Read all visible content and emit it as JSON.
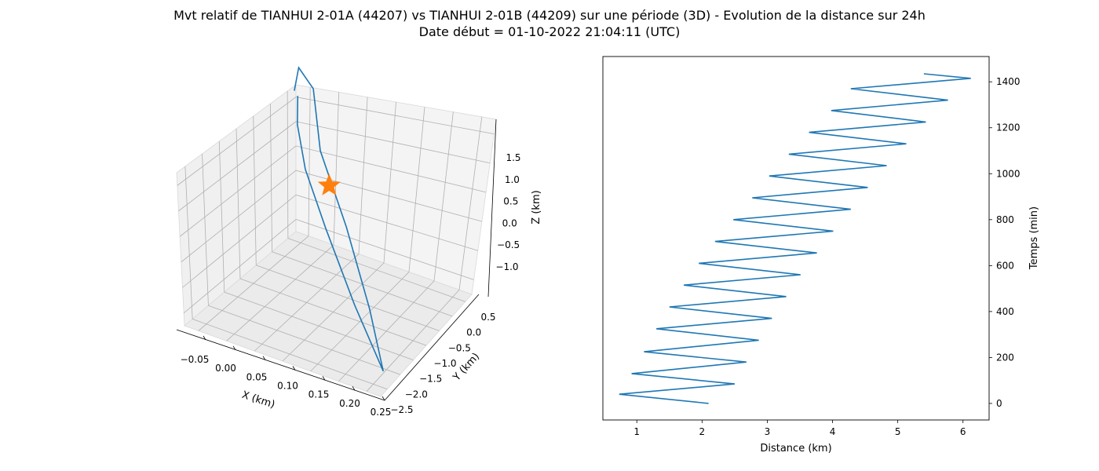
{
  "figure": {
    "title_line1": "Mvt relatif de TIANHUI 2-01A (44207) vs TIANHUI 2-01B (44209) sur une période (3D) - Evolution de la distance sur 24h",
    "title_line2": "Date début = 01-10-2022 21:04:11 (UTC)"
  },
  "chart_data": [
    {
      "type": "line",
      "projection": "3d",
      "xlabel": "X (km)",
      "ylabel": "Y (km)",
      "zlabel": "Z (km)",
      "xticks": [
        "−0.05",
        "0.00",
        "0.05",
        "0.10",
        "0.15",
        "0.20",
        "0.25"
      ],
      "yticks": [
        "0.5",
        "0.0",
        "−0.5",
        "−1.0",
        "−1.5",
        "−2.0",
        "−2.5"
      ],
      "zticks": [
        "1.5",
        "1.0",
        "0.5",
        "0.0",
        "−0.5",
        "−1.0"
      ],
      "xlim": [
        -0.09,
        0.29
      ],
      "ylim": [
        -2.7,
        0.9
      ],
      "zlim": [
        -1.45,
        1.95
      ],
      "grid": true,
      "series": [
        {
          "color": "#1f77b4",
          "marker": "none",
          "x": [
            0.27,
            0.2,
            0.1,
            0.0,
            -0.05,
            -0.07,
            -0.065
          ],
          "y": [
            -2.2,
            -1.4,
            -0.5,
            0.2,
            0.7,
            0.5,
            0.3
          ],
          "z": [
            -1.3,
            -0.8,
            -0.1,
            0.6,
            1.3,
            1.7,
            1.4
          ]
        },
        {
          "color": "#1f77b4",
          "marker": "none",
          "x": [
            0.27,
            0.18,
            0.08,
            0.0,
            -0.05,
            -0.07
          ],
          "y": [
            -2.2,
            -1.6,
            -0.9,
            -0.3,
            0.2,
            0.5
          ],
          "z": [
            -1.3,
            -0.7,
            0.0,
            0.5,
            0.9,
            1.2
          ]
        },
        {
          "color": "#ff7f0e",
          "marker": "star",
          "x": [
            0.03
          ],
          "y": [
            0.05
          ],
          "z": [
            0.15
          ]
        }
      ]
    },
    {
      "type": "line",
      "xlabel": "Distance (km)",
      "ylabel": "Temps (min)",
      "xlim": [
        0.48,
        6.4
      ],
      "ylim": [
        -72,
        1510
      ],
      "xticks": [
        1,
        2,
        3,
        4,
        5,
        6
      ],
      "yticks": [
        0,
        200,
        400,
        600,
        800,
        1000,
        1200,
        1400
      ],
      "grid": false,
      "series": [
        {
          "color": "#1f77b4",
          "x": [
            2.1,
            0.73,
            2.5,
            0.92,
            2.68,
            1.11,
            2.87,
            1.3,
            3.07,
            1.5,
            3.29,
            1.72,
            3.51,
            1.95,
            3.76,
            2.2,
            4.01,
            2.48,
            4.28,
            2.77,
            4.54,
            3.03,
            4.83,
            3.33,
            5.13,
            3.64,
            5.43,
            3.98,
            5.77,
            4.28,
            6.12,
            5.4
          ],
          "y": [
            0,
            40,
            85,
            130,
            180,
            225,
            275,
            325,
            370,
            420,
            465,
            515,
            560,
            610,
            655,
            705,
            750,
            800,
            845,
            895,
            940,
            990,
            1035,
            1085,
            1130,
            1180,
            1225,
            1275,
            1320,
            1370,
            1415,
            1435
          ]
        }
      ]
    }
  ]
}
